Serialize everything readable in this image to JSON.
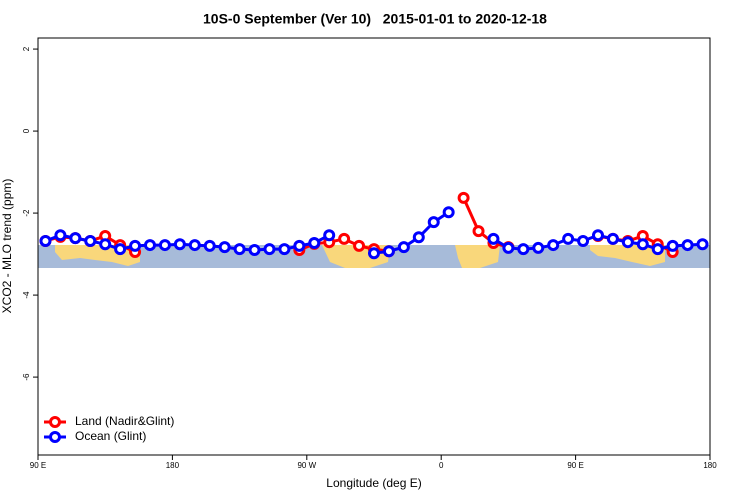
{
  "chart_data": {
    "type": "line",
    "title": "10S-0 September (Ver 10)   2015-01-01 to 2020-12-18",
    "xlabel": "Longitude (deg E)",
    "ylabel": "XCO2 - MLO trend (ppm)",
    "x": [
      95,
      105,
      115,
      125,
      135,
      145,
      155,
      165,
      175,
      185,
      195,
      205,
      215,
      225,
      235,
      245,
      255,
      265,
      275,
      285,
      295,
      305,
      315,
      325,
      335,
      345,
      355,
      365,
      375,
      385,
      395,
      405,
      415,
      425,
      435,
      445,
      455,
      465,
      475,
      485,
      495,
      505,
      515,
      525,
      535
    ],
    "series": [
      {
        "name": "Land (Nadir&Glint)",
        "color": "#ff0000",
        "values": [
          -2.68,
          -2.58,
          -2.61,
          -2.68,
          -2.56,
          -2.78,
          -2.95,
          null,
          null,
          null,
          null,
          null,
          null,
          null,
          null,
          null,
          null,
          -2.9,
          -2.75,
          -2.71,
          -2.63,
          -2.8,
          -2.88,
          -2.93,
          null,
          null,
          null,
          null,
          -1.63,
          -2.44,
          -2.73,
          -2.83,
          null,
          null,
          null,
          null,
          null,
          -2.56,
          -2.63,
          -2.68,
          -2.56,
          -2.76,
          -2.95,
          null,
          null
        ]
      },
      {
        "name": "Ocean (Glint)",
        "color": "#0000ff",
        "values": [
          -2.68,
          -2.54,
          -2.61,
          -2.68,
          -2.76,
          -2.88,
          -2.8,
          -2.78,
          -2.78,
          -2.76,
          -2.78,
          -2.8,
          -2.83,
          -2.88,
          -2.9,
          -2.88,
          -2.88,
          -2.8,
          -2.73,
          -2.54,
          null,
          null,
          -2.98,
          -2.93,
          -2.83,
          -2.59,
          -2.22,
          -1.98,
          null,
          null,
          -2.63,
          -2.85,
          -2.88,
          -2.85,
          -2.78,
          -2.63,
          -2.68,
          -2.54,
          -2.63,
          -2.71,
          -2.76,
          -2.88,
          -2.8,
          -2.78,
          -2.76
        ]
      }
    ],
    "xlim": [
      90,
      540
    ],
    "xticks": [
      {
        "value": 90,
        "label": "90 E"
      },
      180,
      {
        "value": 270,
        "label": "90 W"
      },
      {
        "value": 360,
        "label": "0"
      },
      {
        "value": 450,
        "label": "90 E"
      },
      {
        "value": 540,
        "label": "180"
      }
    ],
    "ylim": [
      -7.9,
      2.27
    ],
    "yticks": [
      2,
      0,
      -2,
      -4,
      -6
    ],
    "legend": "bottom-left"
  }
}
